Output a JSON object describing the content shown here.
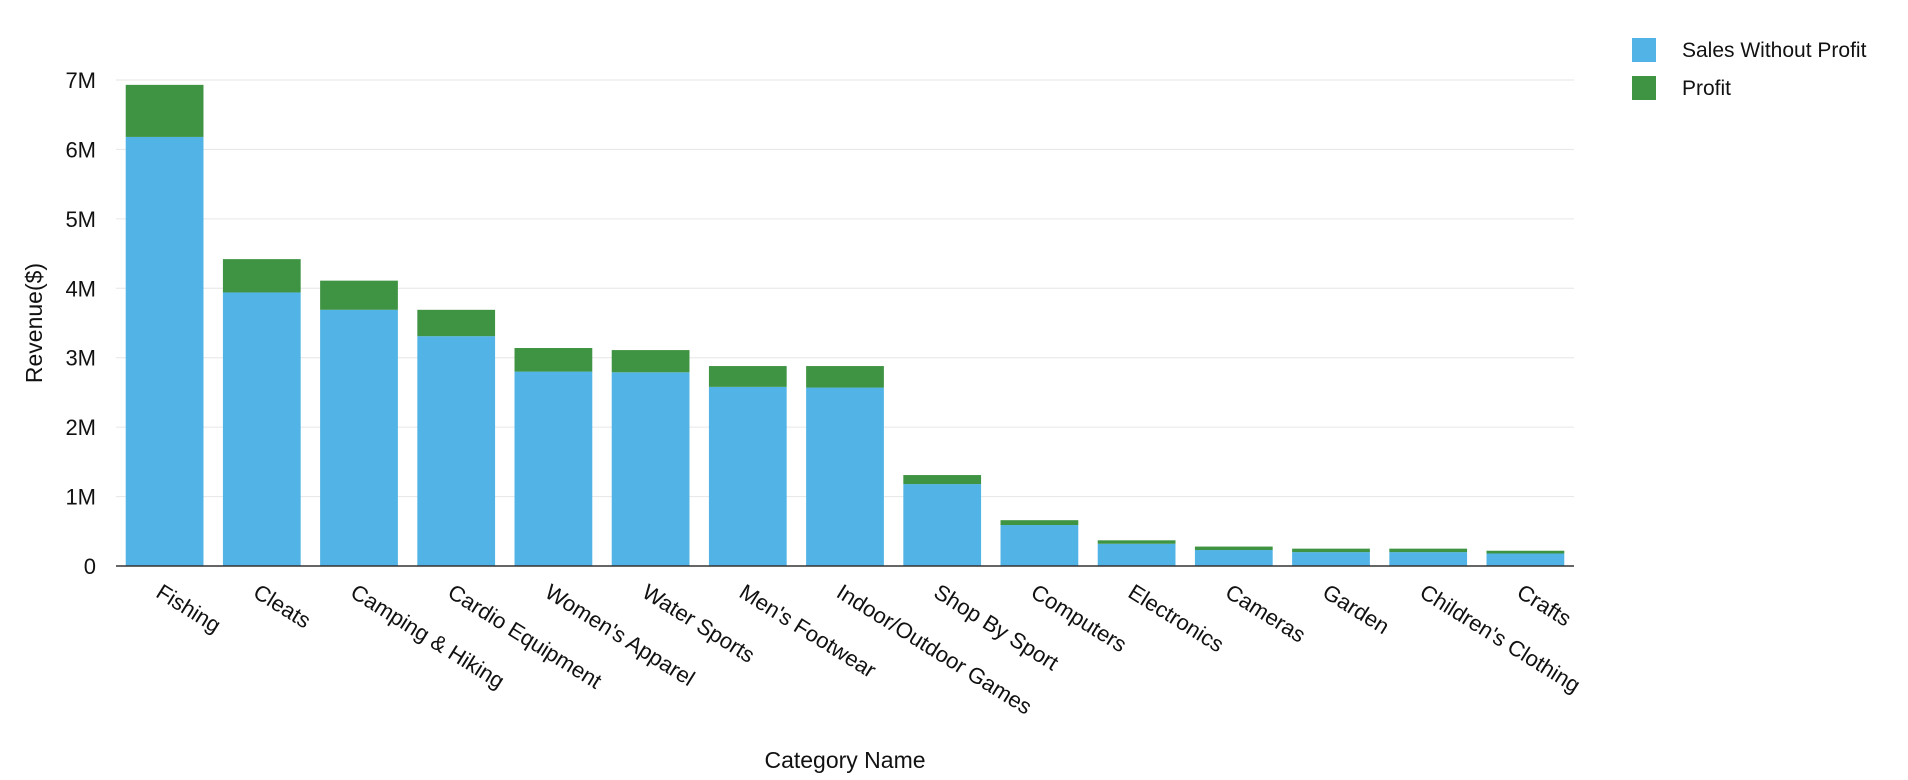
{
  "chart_data": {
    "type": "bar",
    "stacked": true,
    "title": "",
    "xlabel": "Category Name",
    "ylabel": "Revenue($)",
    "ylim": [
      0,
      7000000
    ],
    "yticks": [
      0,
      1000000,
      2000000,
      3000000,
      4000000,
      5000000,
      6000000,
      7000000
    ],
    "ytick_labels": [
      "0",
      "1M",
      "2M",
      "3M",
      "4M",
      "5M",
      "6M",
      "7M"
    ],
    "grid": true,
    "legend_position": "top-right",
    "categories": [
      "Fishing",
      "Cleats",
      "Camping & Hiking",
      "Cardio Equipment",
      "Women's Apparel",
      "Water Sports",
      "Men's Footwear",
      "Indoor/Outdoor Games",
      "Shop By Sport",
      "Computers",
      "Electronics",
      "Cameras",
      "Garden",
      "Children's Clothing",
      "Crafts"
    ],
    "series": [
      {
        "name": "Sales Without Profit",
        "color": "#52b3e6",
        "values": [
          6180000,
          3940000,
          3690000,
          3310000,
          2800000,
          2790000,
          2580000,
          2570000,
          1180000,
          590000,
          320000,
          230000,
          200000,
          200000,
          180000
        ]
      },
      {
        "name": "Profit",
        "color": "#3f9444",
        "values": [
          750000,
          480000,
          420000,
          380000,
          340000,
          320000,
          300000,
          310000,
          130000,
          70000,
          50000,
          50000,
          50000,
          50000,
          40000
        ]
      }
    ]
  }
}
